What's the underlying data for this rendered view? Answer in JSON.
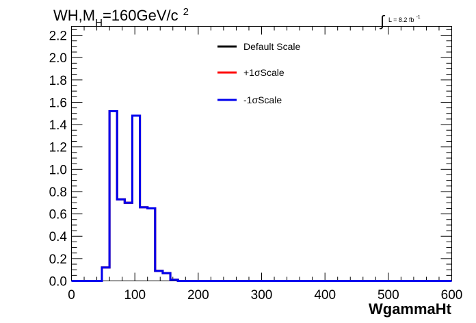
{
  "chart_data": {
    "type": "line",
    "subtype": "step-histogram",
    "title_parts": {
      "prefix": "WH,M",
      "subscript": "H",
      "suffix": "=160GeV/c",
      "superscript": "2"
    },
    "lumi": {
      "integral_symbol": "∫",
      "text": "L = 8.2 fb",
      "superscript": "-1"
    },
    "xlabel": "WgammaHt",
    "ylabel": "",
    "xlim": [
      0,
      600
    ],
    "ylim": [
      0,
      2.28
    ],
    "x_ticks": [
      0,
      100,
      200,
      300,
      400,
      500,
      600
    ],
    "x_tick_labels": [
      "0",
      "100",
      "200",
      "300",
      "400",
      "500",
      "600"
    ],
    "y_ticks": [
      0.0,
      0.2,
      0.4,
      0.6,
      0.8,
      1.0,
      1.2,
      1.4,
      1.6,
      1.8,
      2.0,
      2.2
    ],
    "y_tick_labels": [
      "0.0",
      "0.2",
      "0.4",
      "0.6",
      "0.8",
      "1.0",
      "1.2",
      "1.4",
      "1.6",
      "1.8",
      "2.0",
      "2.2"
    ],
    "bin_edges": [
      0,
      12,
      24,
      36,
      48,
      60,
      72,
      84,
      96,
      108,
      120,
      132,
      144,
      156,
      168,
      180,
      192,
      204,
      216,
      228,
      240,
      252,
      264,
      276,
      288,
      300,
      312,
      324,
      336,
      348,
      360,
      372,
      384,
      396,
      408,
      420,
      432,
      444,
      456,
      468,
      480,
      492,
      504,
      516,
      528,
      540,
      552,
      564,
      576,
      588,
      600
    ],
    "series": [
      {
        "name": "Default Scale",
        "color": "#000000",
        "values": [
          0,
          0,
          0,
          0,
          0.12,
          1.52,
          0.73,
          0.7,
          1.48,
          0.66,
          0.65,
          0.09,
          0.07,
          0.01,
          0,
          0,
          0,
          0,
          0,
          0,
          0,
          0,
          0,
          0,
          0,
          0,
          0,
          0,
          0,
          0,
          0,
          0,
          0,
          0,
          0,
          0,
          0,
          0,
          0,
          0,
          0,
          0,
          0,
          0,
          0,
          0,
          0,
          0,
          0,
          0
        ]
      },
      {
        "name": "+1σScale",
        "color": "#ff0000",
        "values": [
          0,
          0,
          0,
          0,
          0.12,
          1.52,
          0.73,
          0.7,
          1.48,
          0.66,
          0.65,
          0.09,
          0.07,
          0.01,
          0,
          0,
          0,
          0,
          0,
          0,
          0,
          0,
          0,
          0,
          0,
          0,
          0,
          0,
          0,
          0,
          0,
          0,
          0,
          0,
          0,
          0,
          0,
          0,
          0,
          0,
          0,
          0,
          0,
          0,
          0,
          0,
          0,
          0,
          0,
          0
        ]
      },
      {
        "name": "-1σScale",
        "color": "#0000ee",
        "values": [
          0,
          0,
          0,
          0,
          0.12,
          1.52,
          0.73,
          0.7,
          1.48,
          0.66,
          0.65,
          0.09,
          0.07,
          0.01,
          0,
          0,
          0,
          0,
          0,
          0,
          0,
          0,
          0,
          0,
          0,
          0,
          0,
          0,
          0,
          0,
          0,
          0,
          0,
          0,
          0,
          0,
          0,
          0,
          0,
          0,
          0,
          0,
          0,
          0,
          0,
          0,
          0,
          0,
          0,
          0
        ]
      }
    ],
    "legend_position": "top-center",
    "grid": false
  }
}
